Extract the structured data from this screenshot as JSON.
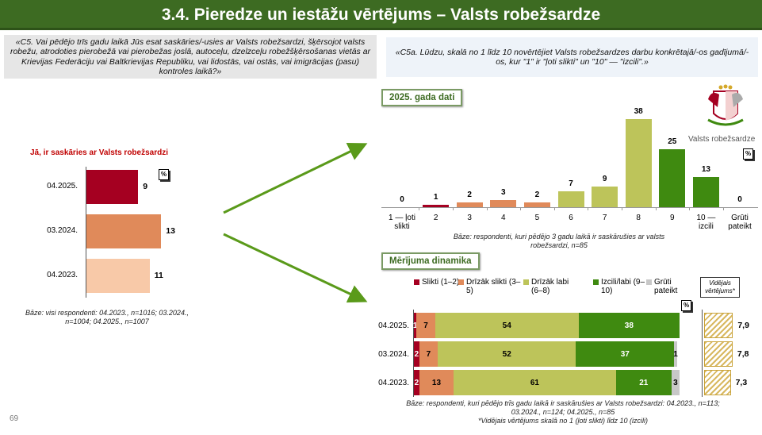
{
  "title": "3.4. Pieredze un iestāžu vērtējums – Valsts robežsardze",
  "question_left": "«C5. Vai pēdējo trīs gadu laikā Jūs esat saskāries/-usies ar Valsts robežsardzi, šķērsojot valsts robežu, atrodoties pierobežā vai pierobežas joslā, autoceļu, dzelzceļu robežšķērsošanas vietās ar Krievijas Federāciju vai Baltkrievijas Republiku, vai lidostās, vai ostās, vai imigrācijas (pasu) kontroles laikā?»",
  "question_right": "«C5a. Lūdzu, skalā no 1 līdz 10 novērtējiet Valsts robežsardzes darbu konkrētajā/-os gadījumā/-os, kur \"1\" ir \"ļoti slikti\" un \"10\" — \"izcili\".»",
  "percent_sign": "%",
  "page_number": "69",
  "logo_text": "Valsts robežsardze",
  "colors": {
    "title_bg": "#3d6b22",
    "dark_red": "#a50021",
    "orange": "#e08a5a",
    "peach": "#f8c9a8",
    "light_green": "#bdc45a",
    "dark_green": "#3f8a10",
    "gray": "#c8c8c8"
  },
  "chart_data": [
    {
      "type": "bar",
      "orientation": "horizontal",
      "title": "Jā, ir saskāries ar Valsts robežsardzi",
      "unit": "%",
      "categories": [
        "04.2025.",
        "03.2024.",
        "04.2023."
      ],
      "values": [
        9,
        13,
        11
      ],
      "colors": [
        "#a50021",
        "#e08a5a",
        "#f8c9a8"
      ],
      "base": "Bāze: visi respondenti: 04.2023., n=1016; 03.2024., n=1004; 04.2025., n=1007"
    },
    {
      "type": "bar",
      "title": "2025. gada dati",
      "unit": "%",
      "categories": [
        "1 — ļoti slikti",
        "2",
        "3",
        "4",
        "5",
        "6",
        "7",
        "8",
        "9",
        "10 — izcili",
        "Grūti pateikt"
      ],
      "values": [
        0,
        1,
        2,
        3,
        2,
        7,
        9,
        38,
        25,
        13,
        0
      ],
      "colors": [
        "#a50021",
        "#a50021",
        "#e08a5a",
        "#e08a5a",
        "#e08a5a",
        "#bdc45a",
        "#bdc45a",
        "#bdc45a",
        "#3f8a10",
        "#3f8a10",
        "#c8c8c8"
      ],
      "base": "Bāze: respondenti, kuri pēdējo 3 gadu laikā ir saskārušies ar valsts robežsardzi, n=85"
    },
    {
      "type": "bar",
      "stacked": true,
      "orientation": "horizontal",
      "title": "Mērījuma dinamika",
      "unit": "%",
      "categories": [
        "04.2025.",
        "03.2024.",
        "04.2023."
      ],
      "series": [
        {
          "name": "Slikti (1–2)",
          "color": "#a50021",
          "values": [
            1,
            2,
            2
          ]
        },
        {
          "name": "Drīzāk slikti (3–5)",
          "color": "#e08a5a",
          "values": [
            7,
            7,
            13
          ]
        },
        {
          "name": "Drīzāk labi (6–8)",
          "color": "#bdc45a",
          "values": [
            54,
            52,
            61
          ]
        },
        {
          "name": "Izcili/labi (9–10)",
          "color": "#3f8a10",
          "values": [
            38,
            37,
            21
          ]
        },
        {
          "name": "Grūti pateikt",
          "color": "#c8c8c8",
          "values": [
            0,
            1,
            3
          ]
        }
      ],
      "average_label": "Vidējais vērtējums*",
      "averages": [
        "7,9",
        "7,8",
        "7,3"
      ],
      "average_values": [
        7.9,
        7.8,
        7.3
      ],
      "base": "Bāze: respondenti, kuri pēdējo trīs gadu laikā ir saskārušies ar Valsts robežsardzi: 04.2023., n=113; 03.2024., n=124; 04.2025., n=85",
      "footnote": "*Vidējais vērtējums skalā no 1 (ļoti slikti) līdz 10 (izcili)"
    }
  ]
}
